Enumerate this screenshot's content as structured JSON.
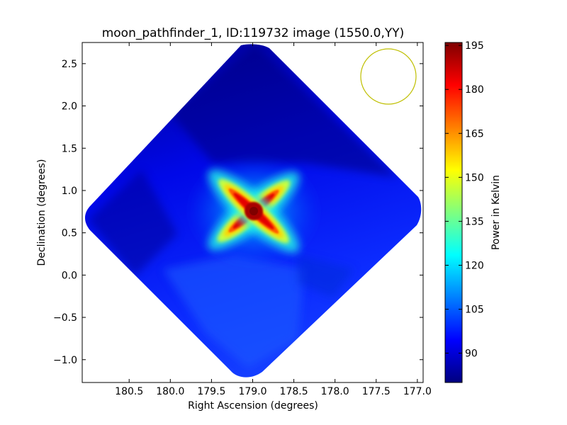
{
  "chart_data": {
    "type": "heatmap",
    "title": "moon_pathfinder_1, ID:119732 image (1550.0,YY)",
    "xlabel": "Right Ascension (degrees)",
    "ylabel": "Declination (degrees)",
    "xlim": [
      181.07,
      176.93
    ],
    "ylim": [
      -1.27,
      2.75
    ],
    "x_ticks": [
      180.5,
      180.0,
      179.5,
      179.0,
      178.5,
      178.0,
      177.5,
      177.0
    ],
    "x_tick_labels": [
      "180.5",
      "180.0",
      "179.5",
      "179.0",
      "178.5",
      "178.0",
      "177.5",
      "177.0"
    ],
    "y_ticks": [
      -1.0,
      -0.5,
      0.0,
      0.5,
      1.0,
      1.5,
      2.0,
      2.5
    ],
    "y_tick_labels": [
      "−1.0",
      "−0.5",
      "0.0",
      "0.5",
      "1.0",
      "1.5",
      "2.0",
      "2.5"
    ],
    "colorbar": {
      "label": "Power in Kelvin",
      "colormap": "jet",
      "range": [
        80,
        196
      ],
      "ticks": [
        90,
        105,
        120,
        135,
        150,
        165,
        180,
        195
      ],
      "tick_labels": [
        "90",
        "105",
        "120",
        "135",
        "150",
        "165",
        "180",
        "195"
      ]
    },
    "map": {
      "footprint_polygon_radec": [
        [
          179.1,
          2.73
        ],
        [
          180.95,
          0.63
        ],
        [
          178.95,
          -1.24
        ],
        [
          176.95,
          0.85
        ]
      ],
      "background_kelvin": 88,
      "field_center_radec": [
        179.0,
        0.75
      ],
      "field_center_kelvin": 195,
      "sidelobe_kelvin": 120
    },
    "beam_circle": {
      "center_radec": [
        177.33,
        2.35
      ],
      "radius_deg": 0.33,
      "color": "#bfbf00"
    },
    "grid": false,
    "legend": "none"
  },
  "colors": {
    "background": "#ffffff",
    "axes": "#000000",
    "beam": "#bfbf00",
    "jet_stops": [
      "#00007f",
      "#0000ff",
      "#007fff",
      "#00ffff",
      "#7fff7f",
      "#ffff00",
      "#ff7f00",
      "#ff0000",
      "#7f0000"
    ]
  }
}
